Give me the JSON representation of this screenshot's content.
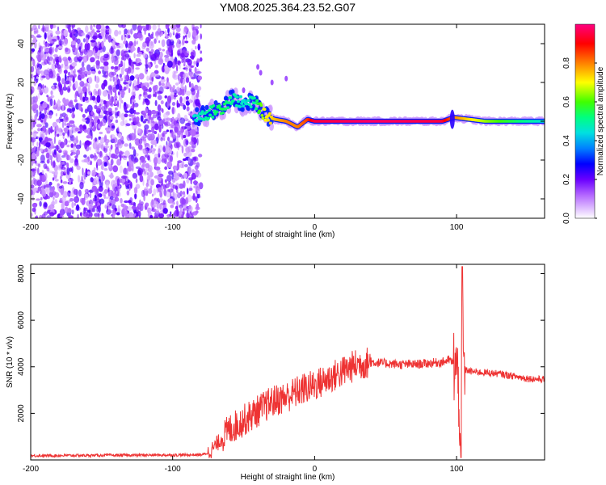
{
  "chart_data": [
    {
      "type": "heatmap",
      "title": "YM08.2025.364.23.52.G07",
      "xlabel": "Height of straight line (km)",
      "ylabel": "Frequency (Hz)",
      "xlim": [
        -200,
        162
      ],
      "ylim": [
        -50,
        50
      ],
      "xticks": [
        "-200",
        "-100",
        "0",
        "100"
      ],
      "yticks": [
        "40",
        "20",
        "0",
        "-20",
        "-40"
      ],
      "colorbar": {
        "label": "Normalized spectral amplitude",
        "ticks": [
          "0.0",
          "0.2",
          "0.4",
          "0.6",
          "0.8"
        ],
        "range": [
          0,
          1
        ]
      },
      "noise_region_x": [
        -200,
        -80
      ],
      "signal_track": [
        {
          "x": -85,
          "y": 2,
          "amp": 0.45
        },
        {
          "x": -75,
          "y": 4,
          "amp": 0.5
        },
        {
          "x": -65,
          "y": 7,
          "amp": 0.55
        },
        {
          "x": -58,
          "y": 12,
          "amp": 0.5
        },
        {
          "x": -50,
          "y": 9,
          "amp": 0.45
        },
        {
          "x": -42,
          "y": 10,
          "amp": 0.5
        },
        {
          "x": -35,
          "y": 3,
          "amp": 0.7
        },
        {
          "x": -28,
          "y": 1,
          "amp": 0.75
        },
        {
          "x": -20,
          "y": 0,
          "amp": 0.8
        },
        {
          "x": -12,
          "y": -3,
          "amp": 0.8
        },
        {
          "x": -5,
          "y": 1,
          "amp": 0.85
        },
        {
          "x": 0,
          "y": 0,
          "amp": 0.95
        },
        {
          "x": 40,
          "y": 0,
          "amp": 0.98
        },
        {
          "x": 90,
          "y": 0,
          "amp": 0.95
        },
        {
          "x": 98,
          "y": 2,
          "amp": 0.8
        },
        {
          "x": 120,
          "y": 0,
          "amp": 0.65
        },
        {
          "x": 150,
          "y": 0,
          "amp": 0.5
        },
        {
          "x": 162,
          "y": 0,
          "amp": 0.45
        }
      ]
    },
    {
      "type": "line",
      "title": "",
      "xlabel": "Height of straight line (km)",
      "ylabel": "SNR (10 * v/v)",
      "xlim": [
        -200,
        162
      ],
      "ylim": [
        0,
        8400
      ],
      "xticks": [
        "-200",
        "-100",
        "0",
        "100"
      ],
      "yticks": [
        "8000",
        "6000",
        "4000",
        "2000"
      ],
      "series": [
        {
          "name": "SNR",
          "color": "#ee3333",
          "x": [
            -200,
            -150,
            -100,
            -80,
            -75,
            -70,
            -60,
            -50,
            -40,
            -30,
            -20,
            -10,
            0,
            10,
            20,
            30,
            40,
            50,
            60,
            70,
            80,
            90,
            95,
            100,
            102,
            103,
            104,
            105,
            110,
            120,
            130,
            140,
            150,
            162
          ],
          "y": [
            180,
            200,
            210,
            220,
            300,
            600,
            1300,
            1700,
            2100,
            2500,
            2700,
            3000,
            3200,
            3500,
            3800,
            4100,
            4200,
            4150,
            4100,
            4100,
            4150,
            4200,
            4300,
            4000,
            2500,
            100,
            8300,
            3900,
            3800,
            3750,
            3700,
            3600,
            3500,
            3450
          ]
        }
      ]
    }
  ]
}
